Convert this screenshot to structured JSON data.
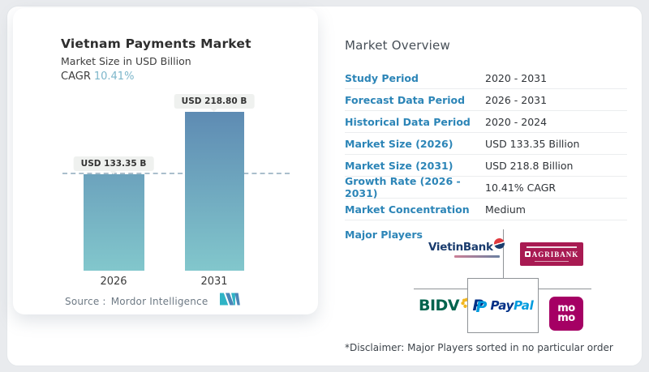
{
  "chart_data": {
    "type": "bar",
    "title": "Vietnam Payments Market",
    "subtitle": "Market Size in USD Billion",
    "cagr_label": "CAGR",
    "cagr_value": "10.41%",
    "categories": [
      "2026",
      "2031"
    ],
    "values": [
      133.35,
      218.8
    ],
    "bar_labels": [
      "USD 133.35 B",
      "USD 218.80 B"
    ],
    "ylabel": "Market Size in USD Billion",
    "legend": "none",
    "gridlines": "single dashed reference line at first bar value",
    "source_label": "Source :",
    "source_name": "Mordor Intelligence"
  },
  "overview": {
    "heading": "Market Overview",
    "rows": [
      {
        "label": "Study Period",
        "value": "2020 - 2031"
      },
      {
        "label": "Forecast Data Period",
        "value": "2026 - 2031"
      },
      {
        "label": "Historical Data Period",
        "value": "2020 - 2024"
      },
      {
        "label": "Market Size (2026)",
        "value": "USD 133.35 Billion"
      },
      {
        "label": "Market Size (2031)",
        "value": "USD 218.8 Billion"
      },
      {
        "label": "Growth Rate (2026 - 2031)",
        "value": "10.41% CAGR"
      },
      {
        "label": "Market Concentration",
        "value": "Medium"
      }
    ],
    "major_players_label": "Major Players",
    "players": {
      "vietinbank": "VietinBank",
      "agribank": "AGRIBANK",
      "bidv": "BIDV",
      "paypal_monogram": "P",
      "paypal_pay": "Pay",
      "paypal_pal": "Pal",
      "momo_line1": "mo",
      "momo_line2": "mo"
    },
    "disclaimer": "*Disclaimer: Major Players sorted in no particular order"
  },
  "colors": {
    "page_bg": "#e9ebee",
    "card_bg": "#ffffff",
    "label_blue": "#2c85b7",
    "cagr_blue": "#7db6ca",
    "bar_gradient_top": "#5e8bb3",
    "bar_gradient_bottom": "#82c7cc",
    "agribank_red": "#a81a52",
    "momo_pink": "#a50064",
    "bidv_green": "#00634d",
    "paypal_navy": "#003087",
    "paypal_blue": "#009cde",
    "mordor_teal": "#2fb4c6",
    "mordor_steel": "#4a86b8"
  }
}
